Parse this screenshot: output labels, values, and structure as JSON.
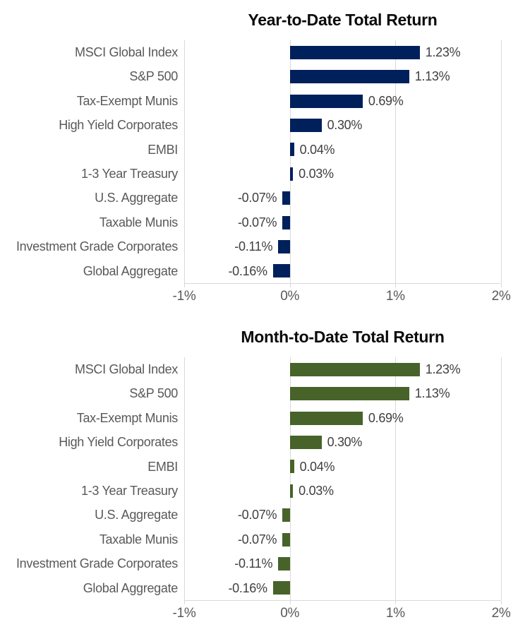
{
  "colors": {
    "background": "#ffffff",
    "grid_line": "#d9d9d9",
    "axis_line": "#d9d9d9",
    "category_text": "#595959",
    "value_text": "#3f3f3f",
    "axis_text": "#595959",
    "title_text": "#0b0b0b",
    "ytd_bar": "#00205c",
    "mtd_bar": "#47632a"
  },
  "chart_data": [
    {
      "type": "bar",
      "orientation": "horizontal",
      "title": "Year-to-Date Total Return",
      "categories": [
        "MSCI Global Index",
        "S&P 500",
        "Tax-Exempt Munis",
        "High Yield Corporates",
        "EMBI",
        "1-3 Year Treasury",
        "U.S. Aggregate",
        "Taxable Munis",
        "Investment Grade Corporates",
        "Global Aggregate"
      ],
      "values": [
        1.23,
        1.13,
        0.69,
        0.3,
        0.04,
        0.03,
        -0.07,
        -0.07,
        -0.11,
        -0.16
      ],
      "value_labels": [
        "1.23%",
        "1.13%",
        "0.69%",
        "0.30%",
        "0.04%",
        "0.03%",
        "-0.07%",
        "-0.07%",
        "-0.11%",
        "-0.16%"
      ],
      "bar_color": "#00205c",
      "xlim": [
        -1,
        2
      ],
      "x_ticks": [
        {
          "value": -1,
          "label": "-1%"
        },
        {
          "value": 0,
          "label": "0%"
        },
        {
          "value": 1,
          "label": "1%"
        },
        {
          "value": 2,
          "label": "2%"
        }
      ],
      "grid": true,
      "legend_position": "none"
    },
    {
      "type": "bar",
      "orientation": "horizontal",
      "title": "Month-to-Date Total Return",
      "categories": [
        "MSCI Global Index",
        "S&P 500",
        "Tax-Exempt Munis",
        "High Yield Corporates",
        "EMBI",
        "1-3 Year Treasury",
        "U.S. Aggregate",
        "Taxable Munis",
        "Investment Grade Corporates",
        "Global Aggregate"
      ],
      "values": [
        1.23,
        1.13,
        0.69,
        0.3,
        0.04,
        0.03,
        -0.07,
        -0.07,
        -0.11,
        -0.16
      ],
      "value_labels": [
        "1.23%",
        "1.13%",
        "0.69%",
        "0.30%",
        "0.04%",
        "0.03%",
        "-0.07%",
        "-0.07%",
        "-0.11%",
        "-0.16%"
      ],
      "bar_color": "#47632a",
      "xlim": [
        -1,
        2
      ],
      "x_ticks": [
        {
          "value": -1,
          "label": "-1%"
        },
        {
          "value": 0,
          "label": "0%"
        },
        {
          "value": 1,
          "label": "1%"
        },
        {
          "value": 2,
          "label": "2%"
        }
      ],
      "grid": true,
      "legend_position": "none"
    }
  ]
}
